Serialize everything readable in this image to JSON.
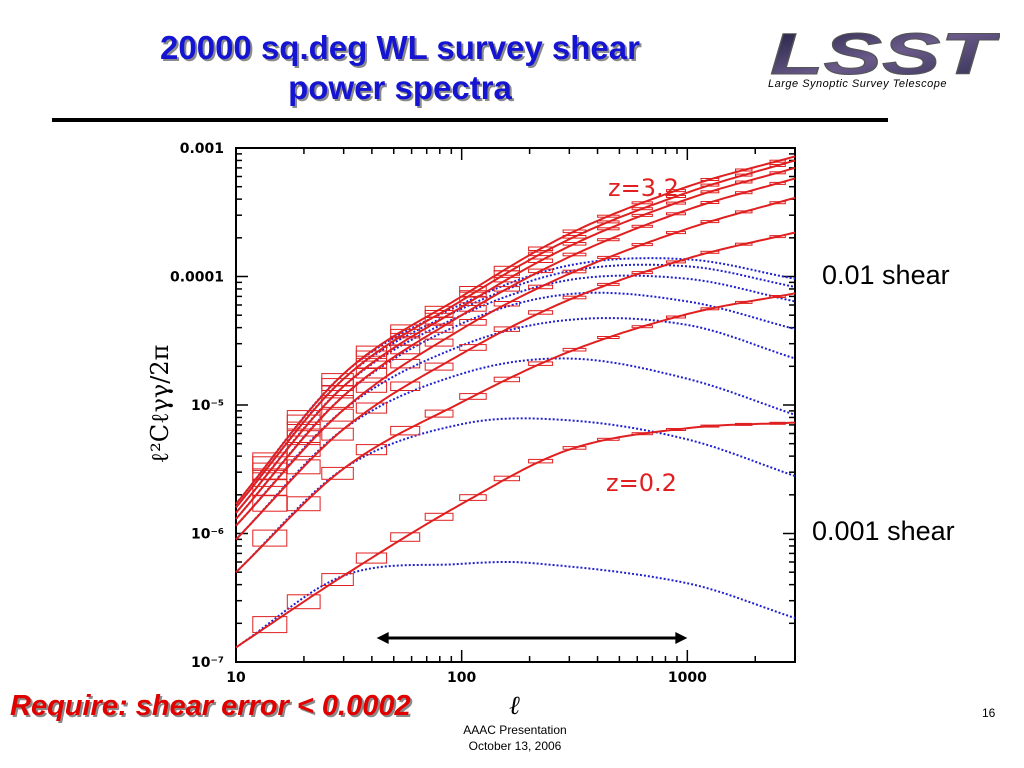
{
  "slide": {
    "title_line1": "20000 sq.deg WL survey shear",
    "title_line2": "power spectra",
    "logo_text": "LSST",
    "logo_subtitle": "Large Synoptic Survey Telescope",
    "label_high": "0.01 shear",
    "label_low": "0.001 shear",
    "requirement": "Require: shear error < 0.0002",
    "footer_line1": "AAAC Presentation",
    "footer_line2": "October 13, 2006",
    "page_number": "16"
  },
  "chart_data": {
    "type": "line",
    "xscale": "log",
    "yscale": "log",
    "xlim": [
      10,
      3000
    ],
    "ylim": [
      1e-07,
      0.001
    ],
    "xticks": [
      10,
      100,
      1000
    ],
    "xtick_labels": [
      "10",
      "100",
      "1000"
    ],
    "yticks": [
      1e-07,
      1e-06,
      1e-05,
      0.0001,
      0.001
    ],
    "ytick_labels": [
      "10⁻⁷",
      "10⁻⁶",
      "10⁻⁵",
      "0.0001",
      "0.001"
    ],
    "xlabel": "ℓ",
    "ylabel": "ℓ²Cℓγγ/2π",
    "annotations": [
      "z=3.2",
      "z=0.2"
    ],
    "range_arrow": [
      42,
      1000
    ],
    "colors": {
      "nonlinear": "#e02020",
      "linear": "#2020d0"
    },
    "series": [
      {
        "linear": [
          [
            10,
            1.3e-07
          ],
          [
            30,
            4.7e-07
          ],
          [
            100,
            5.8e-07
          ],
          [
            200,
            5.9e-07
          ],
          [
            1000,
            4.1e-07
          ],
          [
            3000,
            2.2e-07
          ]
        ],
        "nonlinear": [
          [
            10,
            1.3e-07
          ],
          [
            30,
            4.7e-07
          ],
          [
            100,
            1.7e-06
          ],
          [
            300,
            4.5e-06
          ],
          [
            1000,
            6.6e-06
          ],
          [
            3000,
            7.3e-06
          ]
        ]
      },
      {
        "linear": [
          [
            10,
            5e-07
          ],
          [
            30,
            3.2e-06
          ],
          [
            100,
            7.1e-06
          ],
          [
            300,
            7.6e-06
          ],
          [
            1000,
            5.4e-06
          ],
          [
            3000,
            2.8e-06
          ]
        ],
        "nonlinear": [
          [
            10,
            5e-07
          ],
          [
            30,
            3.2e-06
          ],
          [
            100,
            1.05e-05
          ],
          [
            300,
            2.6e-05
          ],
          [
            1000,
            5.1e-05
          ],
          [
            3000,
            7.4e-05
          ]
        ]
      },
      {
        "linear": [
          [
            10,
            9e-07
          ],
          [
            30,
            6.5e-06
          ],
          [
            100,
            1.75e-05
          ],
          [
            300,
            2.3e-05
          ],
          [
            1000,
            1.6e-05
          ],
          [
            3000,
            8.4e-06
          ]
        ],
        "nonlinear": [
          [
            10,
            9e-07
          ],
          [
            30,
            6.5e-06
          ],
          [
            100,
            2.5e-05
          ],
          [
            300,
            6.6e-05
          ],
          [
            1000,
            0.000138
          ],
          [
            3000,
            0.00022
          ]
        ]
      },
      {
        "linear": [
          [
            10,
            1.15e-06
          ],
          [
            30,
            9.2e-06
          ],
          [
            100,
            2.9e-05
          ],
          [
            300,
            4.6e-05
          ],
          [
            1000,
            4.2e-05
          ],
          [
            3000,
            2.3e-05
          ]
        ],
        "nonlinear": [
          [
            10,
            1.15e-06
          ],
          [
            30,
            9.2e-06
          ],
          [
            100,
            3.9e-05
          ],
          [
            300,
            0.000105
          ],
          [
            1000,
            0.000235
          ],
          [
            3000,
            0.00041
          ]
        ]
      },
      {
        "linear": [
          [
            10,
            1.3e-06
          ],
          [
            30,
            1.18e-05
          ],
          [
            100,
            4.3e-05
          ],
          [
            300,
            7.3e-05
          ],
          [
            1000,
            6.4e-05
          ],
          [
            3000,
            3.9e-05
          ]
        ],
        "nonlinear": [
          [
            10,
            1.3e-06
          ],
          [
            30,
            1.18e-05
          ],
          [
            100,
            5e-05
          ],
          [
            300,
            0.000142
          ],
          [
            1000,
            0.00033
          ],
          [
            3000,
            0.00058
          ]
        ]
      },
      {
        "linear": [
          [
            10,
            1.45e-06
          ],
          [
            30,
            1.4e-05
          ],
          [
            100,
            5e-05
          ],
          [
            300,
            9.4e-05
          ],
          [
            1000,
            9.6e-05
          ],
          [
            3000,
            6.4e-05
          ]
        ],
        "nonlinear": [
          [
            10,
            1.45e-06
          ],
          [
            30,
            1.4e-05
          ],
          [
            100,
            5.8e-05
          ],
          [
            300,
            0.000172
          ],
          [
            1000,
            0.0004
          ],
          [
            3000,
            0.0007
          ]
        ]
      },
      {
        "linear": [
          [
            10,
            1.6e-06
          ],
          [
            30,
            1.6e-05
          ],
          [
            100,
            5.6e-05
          ],
          [
            300,
            0.00011
          ],
          [
            1000,
            0.00012
          ],
          [
            3000,
            8.3e-05
          ]
        ],
        "nonlinear": [
          [
            10,
            1.6e-06
          ],
          [
            30,
            1.6e-05
          ],
          [
            100,
            6.5e-05
          ],
          [
            300,
            0.000195
          ],
          [
            1000,
            0.00045
          ],
          [
            3000,
            0.0008
          ]
        ]
      },
      {
        "linear": [
          [
            10,
            1.7e-06
          ],
          [
            30,
            1.75e-05
          ],
          [
            100,
            6.1e-05
          ],
          [
            300,
            0.000122
          ],
          [
            1000,
            0.000136
          ],
          [
            3000,
            9.6e-05
          ]
        ],
        "nonlinear": [
          [
            10,
            1.7e-06
          ],
          [
            30,
            1.75e-05
          ],
          [
            100,
            7e-05
          ],
          [
            300,
            0.000215
          ],
          [
            1000,
            0.0005
          ],
          [
            3000,
            0.00086
          ]
        ]
      }
    ]
  }
}
